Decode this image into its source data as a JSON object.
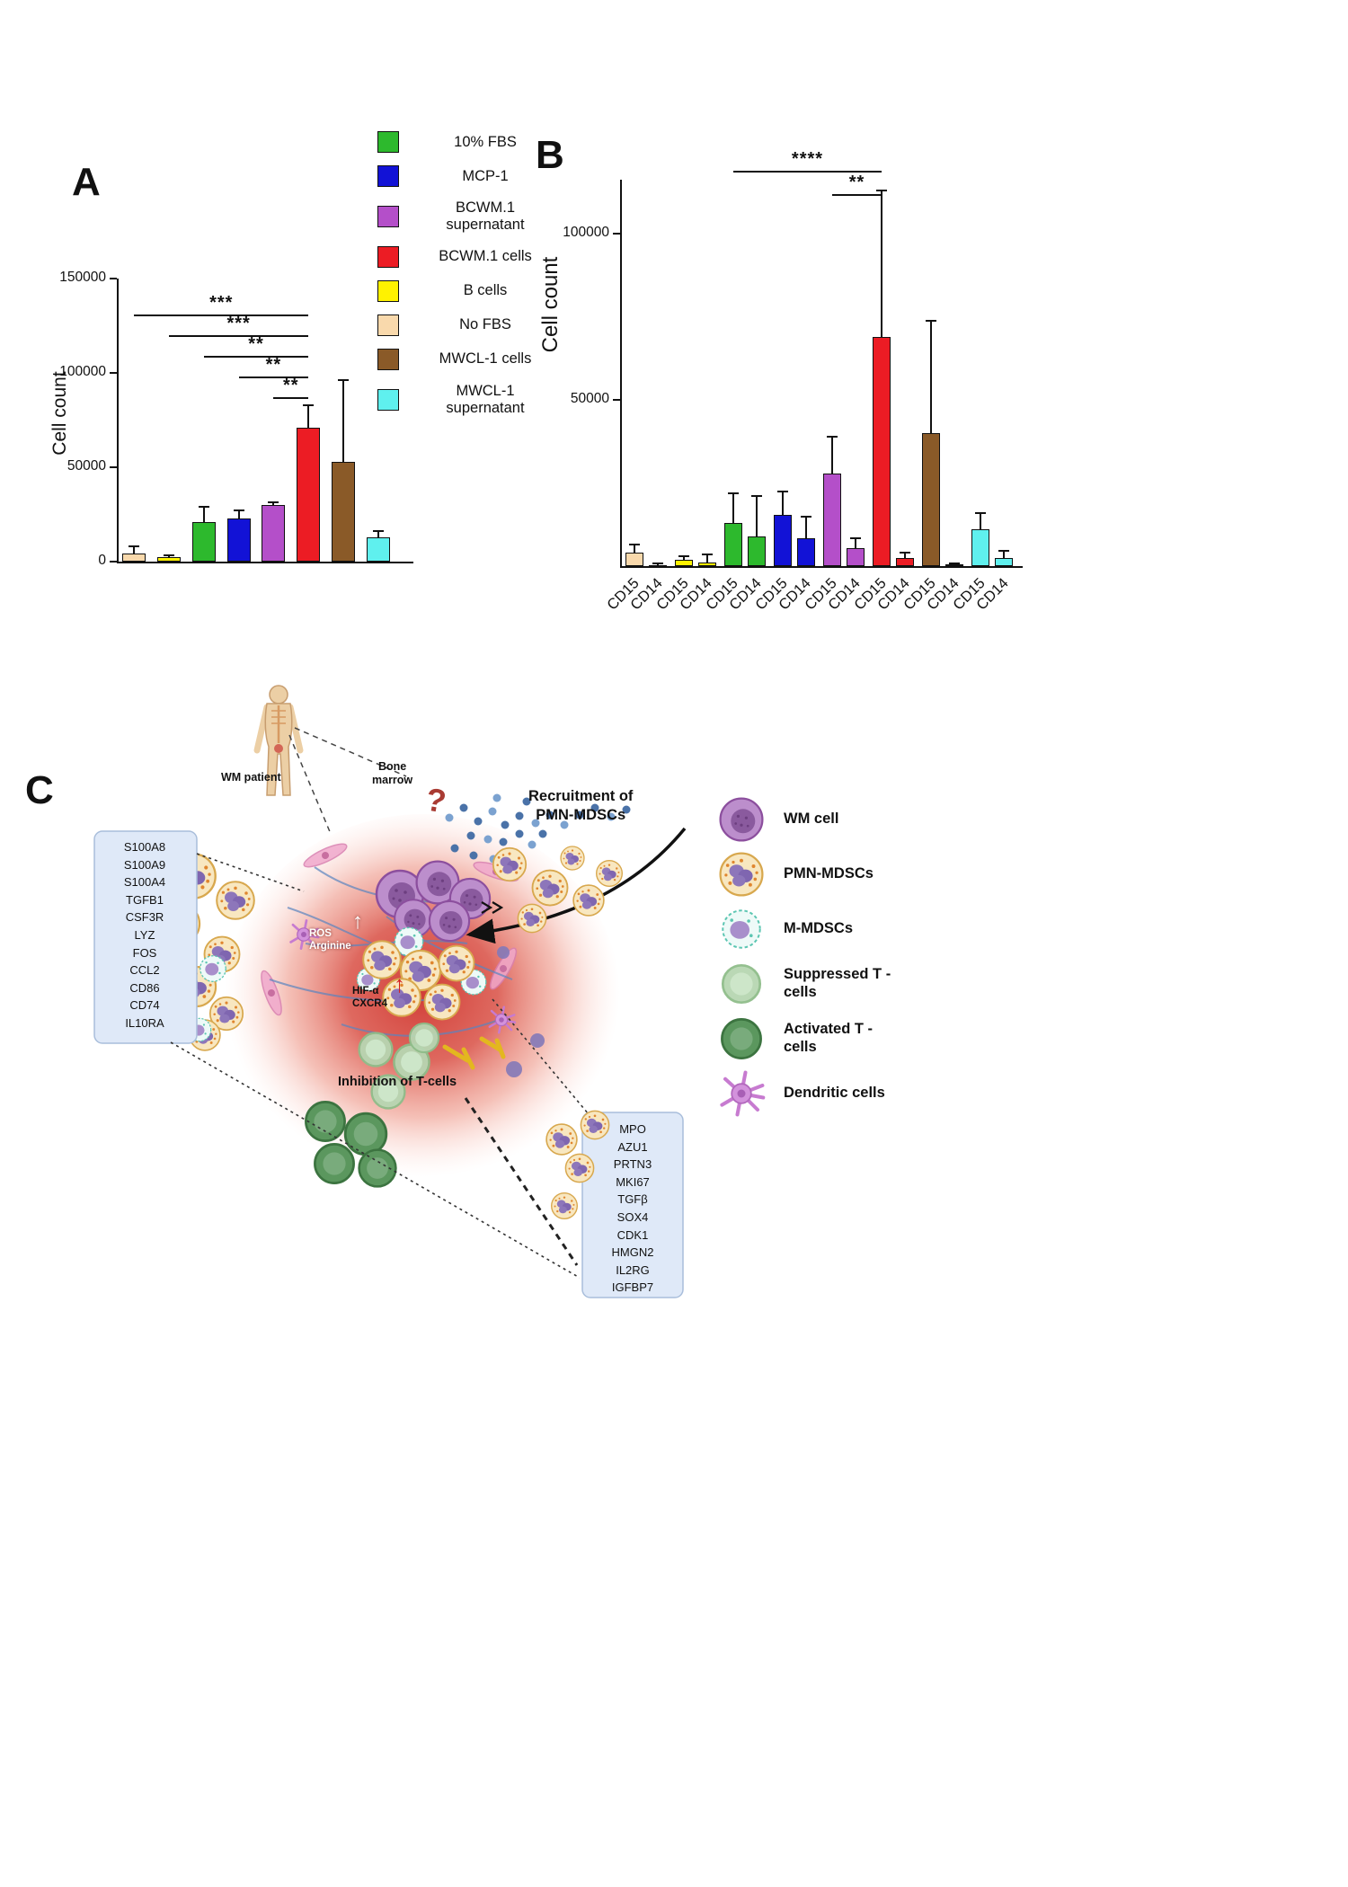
{
  "figure": {
    "a_label": "A",
    "b_label": "B",
    "c_label": "C"
  },
  "legend": {
    "items": [
      {
        "label": "10% FBS",
        "color": "#2db92d"
      },
      {
        "label": "MCP-1",
        "color": "#1212d6"
      },
      {
        "label": "BCWM.1\nsupernatant",
        "color": "#b44fc9"
      },
      {
        "label": "BCWM.1 cells",
        "color": "#ec1c24"
      },
      {
        "label": "B cells",
        "color": "#fff200"
      },
      {
        "label": "No FBS",
        "color": "#f9d9ac"
      },
      {
        "label": "MWCL-1 cells",
        "color": "#8a5a28"
      },
      {
        "label": "MWCL-1\nsupernatant",
        "color": "#5ff0ee"
      }
    ]
  },
  "chart_data": [
    {
      "id": "A",
      "type": "bar",
      "title": "",
      "ylabel": "Cell count",
      "ylim": [
        0,
        150000
      ],
      "yticks": [
        "0",
        "50000",
        "100000",
        "150000"
      ],
      "ytick_vals": [
        0,
        50000,
        100000,
        150000
      ],
      "categories": [
        "No FBS",
        "B cells",
        "10% FBS",
        "MCP-1",
        "BCWM.1 supernatant",
        "BCWM.1 cells",
        "MWCL-1 cells",
        "MWCL-1 supernatant"
      ],
      "values": [
        4500,
        2500,
        21000,
        23000,
        30000,
        71000,
        53000,
        13000
      ],
      "errors_upper": [
        3500,
        800,
        8000,
        4000,
        1500,
        12000,
        43000,
        3000
      ],
      "bar_colors": [
        "#f9d9ac",
        "#fff200",
        "#2db92d",
        "#1212d6",
        "#b44fc9",
        "#ec1c24",
        "#8a5a28",
        "#5ff0ee"
      ],
      "significance": [
        {
          "from": 0,
          "to": 5,
          "label": "***"
        },
        {
          "from": 1,
          "to": 5,
          "label": "***"
        },
        {
          "from": 2,
          "to": 5,
          "label": "**"
        },
        {
          "from": 3,
          "to": 5,
          "label": "**"
        },
        {
          "from": 4,
          "to": 5,
          "label": "**"
        }
      ]
    },
    {
      "id": "B",
      "type": "bar",
      "title": "",
      "ylabel": "Cell count",
      "ylim": [
        0,
        115000
      ],
      "yticks": [
        "50000",
        "100000"
      ],
      "ytick_vals": [
        50000,
        100000
      ],
      "group_labels": [
        "No FBS",
        "B cells",
        "10% FBS",
        "MCP-1",
        "BCWM.1 supernatant",
        "BCWM.1 cells",
        "MWCL-1 cells",
        "MWCL-1 supernatant"
      ],
      "categories": [
        "CD15",
        "CD14",
        "CD15",
        "CD14",
        "CD15",
        "CD14",
        "CD15",
        "CD14",
        "CD15",
        "CD14",
        "CD15",
        "CD14",
        "CD15",
        "CD14",
        "CD15",
        "CD14"
      ],
      "values": [
        4000,
        400,
        2000,
        1200,
        13000,
        9000,
        15500,
        8500,
        28000,
        5500,
        69000,
        2500,
        40000,
        500,
        11000,
        2500
      ],
      "errors_upper": [
        2500,
        300,
        900,
        2200,
        9000,
        12000,
        7000,
        6500,
        11000,
        3000,
        44000,
        1500,
        34000,
        300,
        5000,
        2000
      ],
      "bar_colors": [
        "#f9d9ac",
        "#f9d9ac",
        "#fff200",
        "#fff200",
        "#2db92d",
        "#2db92d",
        "#1212d6",
        "#1212d6",
        "#b44fc9",
        "#b44fc9",
        "#ec1c24",
        "#ec1c24",
        "#8a5a28",
        "#8a5a28",
        "#5ff0ee",
        "#5ff0ee"
      ],
      "significance": [
        {
          "from": 4,
          "to": 10,
          "label": "****"
        },
        {
          "from": 8,
          "to": 10,
          "label": "**"
        }
      ]
    }
  ],
  "panelC": {
    "wm_patient_label": "WM patient",
    "bone_marrow_label": "Bone\nmarrow",
    "question_mark": "?",
    "recruitment_label": "Recruitment of\nPMN-MDSCs",
    "ros_label": "ROS\nArginine",
    "ros_arrow": "↑",
    "hif_label": "HIF-α\nCXCR4",
    "hif_arrow": "↑",
    "inhibition_label": "Inhibition of T-cells",
    "gene_list_1": [
      "S100A8",
      "S100A9",
      "S100A4",
      "TGFB1",
      "CSF3R",
      "LYZ",
      "FOS",
      "CCL2",
      "CD86",
      "CD74",
      "IL10RA"
    ],
    "gene_list_2": [
      "MPO",
      "AZU1",
      "PRTN3",
      "MKI67",
      "TGFβ",
      "SOX4",
      "CDK1",
      "HMGN2",
      "IL2RG",
      "IGFBP7"
    ],
    "legend": [
      {
        "label": "WM cell",
        "icon": "wm"
      },
      {
        "label": "PMN-MDSCs",
        "icon": "pmn"
      },
      {
        "label": "M-MDSCs",
        "icon": "mmdsc"
      },
      {
        "label": "Suppressed T -\ncells",
        "icon": "tsupp"
      },
      {
        "label": "Activated T -\ncells",
        "icon": "tact"
      },
      {
        "label": "Dendritic cells",
        "icon": "dendritic"
      }
    ]
  }
}
